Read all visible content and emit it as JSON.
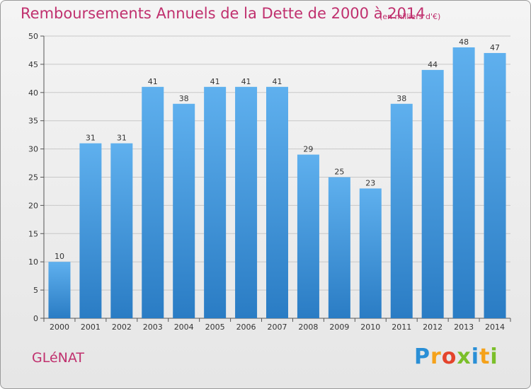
{
  "title": "Remboursements Annuels de la Dette de 2000 à 2014",
  "subtitle": "(en milliers d'€)",
  "commune": "GLéNAT",
  "logo_letters": [
    "P",
    "r",
    "o",
    "x",
    "i",
    "t",
    "i"
  ],
  "chart_data": {
    "type": "bar",
    "title": "Remboursements Annuels de la Dette de 2000 à 2014",
    "subtitle": "(en milliers d'€)",
    "categories": [
      "2000",
      "2001",
      "2002",
      "2003",
      "2004",
      "2005",
      "2006",
      "2007",
      "2008",
      "2009",
      "2010",
      "2011",
      "2012",
      "2013",
      "2014"
    ],
    "values": [
      10,
      31,
      31,
      41,
      38,
      41,
      41,
      41,
      29,
      25,
      23,
      38,
      44,
      48,
      47
    ],
    "xlabel": "",
    "ylabel": "",
    "ylim": [
      0,
      50
    ],
    "yticks": [
      0,
      5,
      10,
      15,
      20,
      25,
      30,
      35,
      40,
      45,
      50
    ],
    "grid": true,
    "bar_color": "#4aa0e6"
  }
}
